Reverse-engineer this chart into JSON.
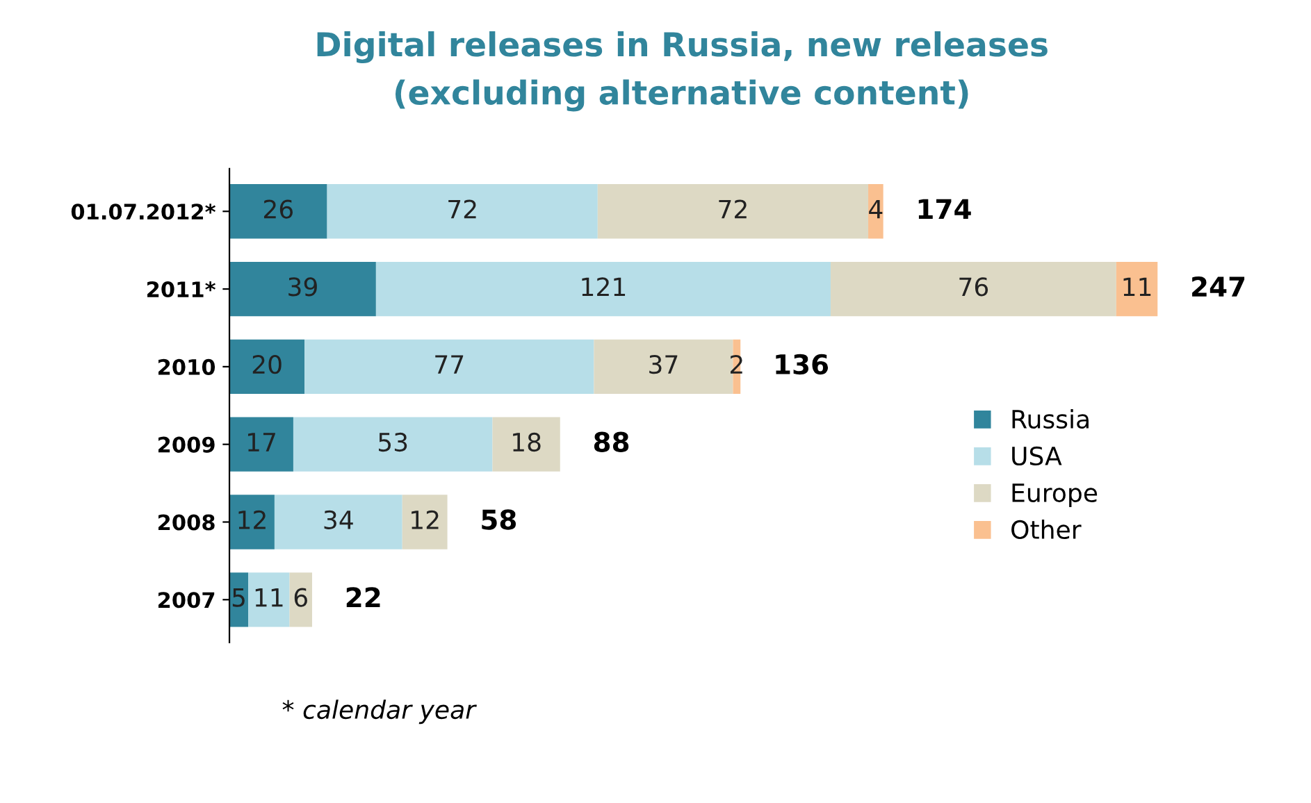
{
  "chart_data": {
    "type": "bar",
    "orientation": "horizontal",
    "stacked": true,
    "title": "Digital releases in Russia, new releases",
    "subtitle": "(excluding alternative content)",
    "categories": [
      "01.07.2012*",
      "2011*",
      "2010",
      "2009",
      "2008",
      "2007"
    ],
    "series": [
      {
        "name": "Russia",
        "color": "#31859c",
        "values": [
          26,
          39,
          20,
          17,
          12,
          5
        ]
      },
      {
        "name": "USA",
        "color": "#b7dee8",
        "values": [
          72,
          121,
          77,
          53,
          34,
          11
        ]
      },
      {
        "name": "Europe",
        "color": "#ddd9c4",
        "values": [
          72,
          76,
          37,
          18,
          12,
          6
        ]
      },
      {
        "name": "Other",
        "color": "#fac090",
        "values": [
          4,
          11,
          2,
          null,
          null,
          null
        ]
      }
    ],
    "data_labels": true,
    "totals": [
      "174",
      "247",
      "136",
      "88",
      "58",
      "22"
    ],
    "legend": "right",
    "grid": false,
    "annotations": [
      "* calendar year"
    ]
  }
}
